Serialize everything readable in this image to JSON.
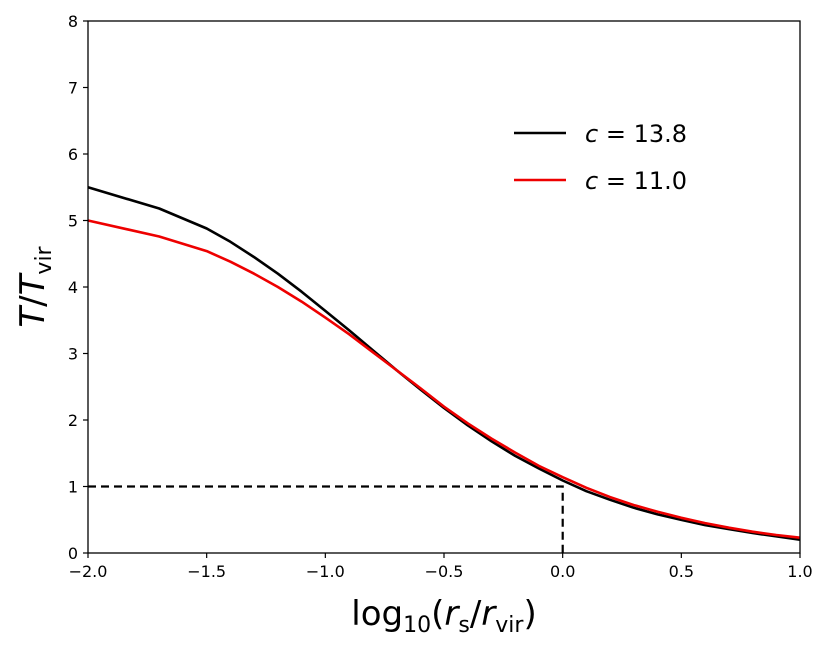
{
  "chart_data": {
    "type": "line",
    "xlabel": "log10(rs/rvir)",
    "ylabel": "T/Tvir",
    "xlim": [
      -2.0,
      1.0
    ],
    "ylim": [
      0,
      8
    ],
    "x_ticks": [
      -2.0,
      -1.5,
      -1.0,
      -0.5,
      0.0,
      0.5,
      1.0
    ],
    "x_tick_labels": [
      "−2.0",
      "−1.5",
      "−1.0",
      "−0.5",
      "0.0",
      "0.5",
      "1.0"
    ],
    "y_ticks": [
      0,
      1,
      2,
      3,
      4,
      5,
      6,
      7,
      8
    ],
    "y_tick_labels": [
      "0",
      "1",
      "2",
      "3",
      "4",
      "5",
      "6",
      "7",
      "8"
    ],
    "grid": false,
    "legend_position": "upper-right",
    "series": [
      {
        "name": "c = 13.8",
        "color": "#000000",
        "x": [
          -2.0,
          -1.7,
          -1.5,
          -1.4,
          -1.3,
          -1.2,
          -1.1,
          -1.0,
          -0.9,
          -0.8,
          -0.7,
          -0.6,
          -0.5,
          -0.4,
          -0.3,
          -0.2,
          -0.1,
          0.0,
          0.1,
          0.2,
          0.3,
          0.4,
          0.5,
          0.6,
          0.7,
          0.8,
          0.9,
          1.0
        ],
        "y": [
          5.5,
          5.18,
          4.88,
          4.68,
          4.45,
          4.2,
          3.93,
          3.64,
          3.35,
          3.05,
          2.75,
          2.46,
          2.18,
          1.92,
          1.68,
          1.46,
          1.27,
          1.09,
          0.93,
          0.8,
          0.68,
          0.58,
          0.5,
          0.42,
          0.36,
          0.3,
          0.25,
          0.2
        ]
      },
      {
        "name": "c = 11.0",
        "color": "#ee0000",
        "x": [
          -2.0,
          -1.7,
          -1.5,
          -1.4,
          -1.3,
          -1.2,
          -1.1,
          -1.0,
          -0.9,
          -0.8,
          -0.7,
          -0.6,
          -0.5,
          -0.4,
          -0.3,
          -0.2,
          -0.1,
          0.0,
          0.1,
          0.2,
          0.3,
          0.4,
          0.5,
          0.6,
          0.7,
          0.8,
          0.9,
          1.0
        ],
        "y": [
          5.0,
          4.76,
          4.54,
          4.38,
          4.2,
          4.0,
          3.78,
          3.54,
          3.29,
          3.02,
          2.75,
          2.48,
          2.2,
          1.95,
          1.72,
          1.51,
          1.31,
          1.14,
          0.98,
          0.84,
          0.72,
          0.62,
          0.53,
          0.45,
          0.38,
          0.32,
          0.27,
          0.23
        ]
      }
    ],
    "reference_lines": [
      {
        "style": "dashed",
        "color": "#000000",
        "x": [
          -2.0,
          0.0,
          0.0
        ],
        "y": [
          1.0,
          1.0,
          0.0
        ]
      }
    ]
  }
}
